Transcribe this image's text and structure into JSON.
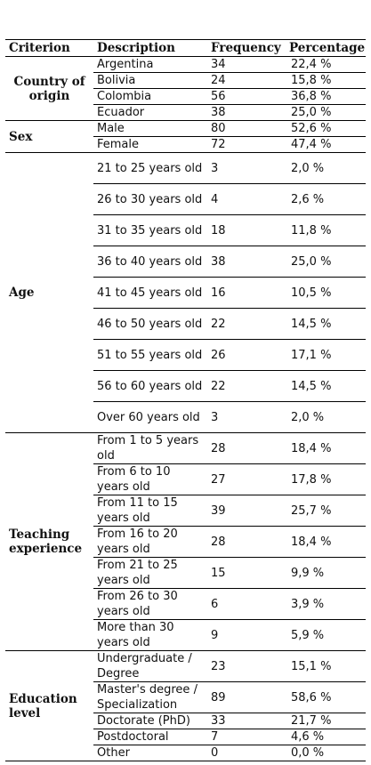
{
  "headers": {
    "criterion": "Criterion",
    "description": "Description",
    "frequency": "Frequency",
    "percentage": "Percentage"
  },
  "groups": [
    {
      "criterion": "Country of origin",
      "rows": [
        {
          "description": "Argentina",
          "frequency": "34",
          "percentage": "22,4 %"
        },
        {
          "description": "Bolivia",
          "frequency": "24",
          "percentage": "15,8 %"
        },
        {
          "description": "Colombia",
          "frequency": "56",
          "percentage": "36,8 %"
        },
        {
          "description": "Ecuador",
          "frequency": "38",
          "percentage": "25,0 %"
        }
      ]
    },
    {
      "criterion": "Sex",
      "rows": [
        {
          "description": "Male",
          "frequency": "80",
          "percentage": "52,6 %"
        },
        {
          "description": "Female",
          "frequency": "72",
          "percentage": "47,4 %"
        }
      ]
    },
    {
      "criterion": "Age",
      "rows": [
        {
          "description": "21 to 25 years old",
          "frequency": "3",
          "percentage": "2,0 %"
        },
        {
          "description": "26 to 30 years old",
          "frequency": "4",
          "percentage": "2,6 %"
        },
        {
          "description": "31 to 35 years old",
          "frequency": "18",
          "percentage": "11,8 %"
        },
        {
          "description": "36 to 40 years old",
          "frequency": "38",
          "percentage": "25,0 %"
        },
        {
          "description": "41 to 45 years old",
          "frequency": "16",
          "percentage": "10,5 %"
        },
        {
          "description": "46 to 50 years old",
          "frequency": "22",
          "percentage": "14,5 %"
        },
        {
          "description": "51 to 55 years old",
          "frequency": "26",
          "percentage": "17,1 %"
        },
        {
          "description": "56 to 60 years old",
          "frequency": "22",
          "percentage": "14,5 %"
        },
        {
          "description": "Over 60 years old",
          "frequency": "3",
          "percentage": "2,0 %"
        }
      ]
    },
    {
      "criterion": "Teaching experience",
      "rows": [
        {
          "description": "From 1 to 5 years old",
          "frequency": "28",
          "percentage": "18,4 %"
        },
        {
          "description": "From 6 to 10 years old",
          "frequency": "27",
          "percentage": "17,8 %"
        },
        {
          "description": "From 11 to 15 years old",
          "frequency": "39",
          "percentage": "25,7 %"
        },
        {
          "description": "From 16 to 20 years old",
          "frequency": "28",
          "percentage": "18,4 %"
        },
        {
          "description": "From 21 to 25 years old",
          "frequency": "15",
          "percentage": "9,9 %"
        },
        {
          "description": "From 26 to 30 years old",
          "frequency": "6",
          "percentage": "3,9 %"
        },
        {
          "description": "More than 30 years old",
          "frequency": "9",
          "percentage": "5,9 %"
        }
      ]
    },
    {
      "criterion": "Education level",
      "rows": [
        {
          "description": "Undergraduate / Degree",
          "frequency": "23",
          "percentage": "15,1 %"
        },
        {
          "description": "Master's degree / Specialization",
          "frequency": "89",
          "percentage": "58,6 %"
        },
        {
          "description": "Doctorate (PhD)",
          "frequency": "33",
          "percentage": "21,7 %"
        },
        {
          "description": "Postdoctoral",
          "frequency": "7",
          "percentage": "4,6 %"
        },
        {
          "description": "Other",
          "frequency": "0",
          "percentage": "0,0 %"
        }
      ]
    }
  ]
}
